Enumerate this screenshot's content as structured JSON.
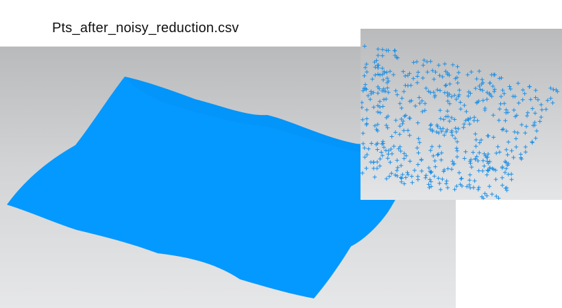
{
  "file": {
    "name": "Pts_after_noisy_reduction.csv"
  },
  "views": {
    "surface": {
      "icon": "point-cloud-surface-icon",
      "color": "#0499ff"
    },
    "reduced": {
      "icon": "plus-marker-icon",
      "color": "#1a8fe6"
    }
  }
}
